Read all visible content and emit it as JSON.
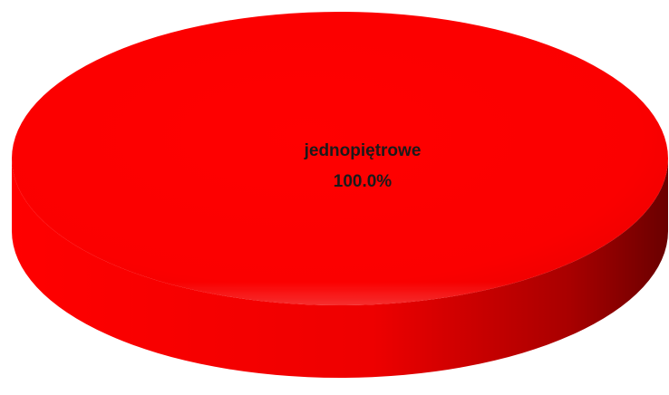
{
  "chart_data": {
    "type": "pie",
    "style": "3d",
    "categories": [
      "jednopiętrowe"
    ],
    "values": [
      100.0
    ],
    "data_labels": [
      {
        "category": "jednopiętrowe",
        "percent": "100.0%"
      }
    ],
    "colors": {
      "slice": "#ff0000",
      "slice_dark": "#6a0000"
    },
    "legend": "none"
  }
}
